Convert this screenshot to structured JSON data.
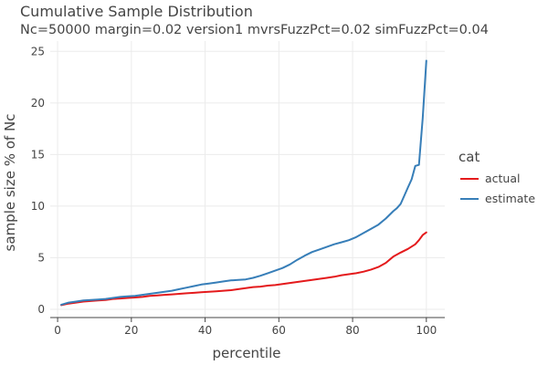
{
  "chart_data": {
    "type": "line",
    "title": "Cumulative Sample Distribution",
    "subtitle": "Nc=50000 margin=0.02 version1 mvrsFuzzPct=0.02 simFuzzPct=0.04",
    "xlabel": "percentile",
    "ylabel": "sample size % of Nc",
    "xlim": [
      -2,
      105
    ],
    "ylim": [
      -0.8,
      26
    ],
    "xticks": [
      "0",
      "20",
      "40",
      "60",
      "80",
      "100"
    ],
    "yticks": [
      "0",
      "5",
      "10",
      "15",
      "20",
      "25"
    ],
    "grid": true,
    "legend": {
      "title": "cat",
      "placement": "right"
    },
    "series": [
      {
        "name": "actual",
        "color": "#e41a1c",
        "x": [
          1,
          3,
          5,
          7,
          9,
          11,
          13,
          15,
          17,
          19,
          21,
          23,
          25,
          27,
          29,
          31,
          33,
          35,
          37,
          39,
          41,
          43,
          45,
          47,
          49,
          51,
          53,
          55,
          57,
          59,
          61,
          63,
          65,
          67,
          69,
          71,
          73,
          75,
          77,
          79,
          81,
          83,
          85,
          87,
          89,
          91,
          93,
          95,
          97,
          98,
          99,
          100
        ],
        "y": [
          0.4,
          0.55,
          0.65,
          0.75,
          0.8,
          0.85,
          0.9,
          1.0,
          1.05,
          1.1,
          1.15,
          1.2,
          1.3,
          1.35,
          1.4,
          1.45,
          1.5,
          1.55,
          1.6,
          1.65,
          1.7,
          1.75,
          1.8,
          1.85,
          1.95,
          2.05,
          2.15,
          2.2,
          2.3,
          2.35,
          2.45,
          2.55,
          2.65,
          2.75,
          2.85,
          2.95,
          3.05,
          3.15,
          3.3,
          3.4,
          3.5,
          3.65,
          3.85,
          4.1,
          4.5,
          5.1,
          5.5,
          5.85,
          6.3,
          6.7,
          7.2,
          7.45
        ]
      },
      {
        "name": "estimate",
        "color": "#377eb8",
        "x": [
          1,
          3,
          5,
          7,
          9,
          11,
          13,
          15,
          17,
          19,
          21,
          23,
          25,
          27,
          29,
          31,
          33,
          35,
          37,
          39,
          41,
          43,
          45,
          47,
          49,
          51,
          53,
          55,
          57,
          59,
          61,
          63,
          65,
          67,
          69,
          71,
          73,
          75,
          77,
          79,
          81,
          83,
          85,
          87,
          89,
          91,
          92,
          93,
          94,
          95,
          96,
          97,
          98,
          99,
          100
        ],
        "y": [
          0.45,
          0.65,
          0.75,
          0.85,
          0.9,
          0.95,
          1.0,
          1.1,
          1.2,
          1.25,
          1.3,
          1.4,
          1.5,
          1.6,
          1.7,
          1.8,
          1.95,
          2.1,
          2.25,
          2.4,
          2.5,
          2.6,
          2.7,
          2.8,
          2.85,
          2.9,
          3.05,
          3.25,
          3.5,
          3.75,
          4.0,
          4.35,
          4.8,
          5.2,
          5.55,
          5.8,
          6.05,
          6.3,
          6.5,
          6.7,
          7.0,
          7.4,
          7.8,
          8.2,
          8.8,
          9.5,
          9.8,
          10.2,
          11.0,
          11.8,
          12.6,
          13.9,
          14.0,
          18.5,
          24.1
        ]
      }
    ]
  }
}
